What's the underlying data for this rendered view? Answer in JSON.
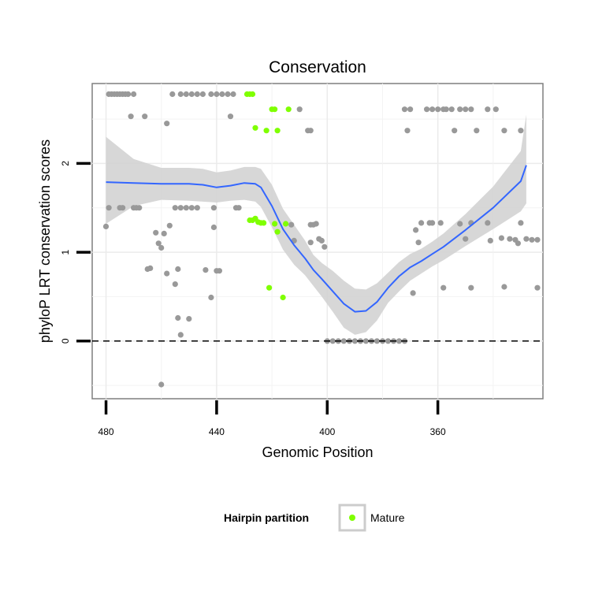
{
  "chart_data": {
    "type": "scatter",
    "title": "Conservation",
    "xlabel": "Genomic Position",
    "ylabel": "phyloP LRT conservation scores",
    "x_reversed": true,
    "xlim": [
      485,
      322
    ],
    "ylim": [
      -0.65,
      2.9
    ],
    "xticks": [
      480,
      440,
      400,
      360
    ],
    "yticks": [
      0,
      1,
      2
    ],
    "grid": true,
    "reference_line": {
      "y": 0,
      "style": "dashed"
    },
    "colors": {
      "other": "#999999",
      "mature": "#7fff00",
      "smooth_line": "#3366ff",
      "ribbon": "#d3d3d3"
    },
    "legend": {
      "title": "Hairpin partition",
      "position": "bottom",
      "entries": [
        {
          "label": "Mature",
          "color": "#7fff00"
        }
      ]
    },
    "series": [
      {
        "name": "",
        "color": "#999999",
        "points": [
          [
            479,
            2.78
          ],
          [
            478,
            2.78
          ],
          [
            477,
            2.78
          ],
          [
            476,
            2.78
          ],
          [
            475,
            2.78
          ],
          [
            474,
            2.78
          ],
          [
            473,
            2.78
          ],
          [
            472,
            2.78
          ],
          [
            470,
            2.78
          ],
          [
            456,
            2.78
          ],
          [
            453,
            2.78
          ],
          [
            451,
            2.78
          ],
          [
            449,
            2.78
          ],
          [
            447,
            2.78
          ],
          [
            445,
            2.78
          ],
          [
            442,
            2.78
          ],
          [
            440,
            2.78
          ],
          [
            438,
            2.78
          ],
          [
            436,
            2.78
          ],
          [
            434,
            2.78
          ],
          [
            471,
            2.53
          ],
          [
            466,
            2.53
          ],
          [
            458,
            2.45
          ],
          [
            435,
            2.53
          ],
          [
            479,
            1.5
          ],
          [
            475,
            1.5
          ],
          [
            474,
            1.5
          ],
          [
            470,
            1.5
          ],
          [
            469,
            1.5
          ],
          [
            468,
            1.5
          ],
          [
            455,
            1.5
          ],
          [
            453,
            1.5
          ],
          [
            451,
            1.5
          ],
          [
            449,
            1.5
          ],
          [
            447,
            1.5
          ],
          [
            441,
            1.5
          ],
          [
            433,
            1.5
          ],
          [
            432,
            1.5
          ],
          [
            480,
            1.29
          ],
          [
            462,
            1.22
          ],
          [
            461,
            1.1
          ],
          [
            460,
            1.05
          ],
          [
            459,
            1.21
          ],
          [
            457,
            1.3
          ],
          [
            441,
            1.28
          ],
          [
            465,
            0.81
          ],
          [
            464,
            0.82
          ],
          [
            458,
            0.76
          ],
          [
            454,
            0.81
          ],
          [
            444,
            0.8
          ],
          [
            440,
            0.79
          ],
          [
            439,
            0.79
          ],
          [
            455,
            0.64
          ],
          [
            442,
            0.49
          ],
          [
            454,
            0.26
          ],
          [
            450,
            0.25
          ],
          [
            453,
            0.07
          ],
          [
            460,
            -0.49
          ],
          [
            410,
            2.61
          ],
          [
            407,
            2.37
          ],
          [
            406,
            2.37
          ],
          [
            412,
            1.13
          ],
          [
            413,
            1.31
          ],
          [
            406,
            1.31
          ],
          [
            405,
            1.31
          ],
          [
            404,
            1.32
          ],
          [
            403,
            1.15
          ],
          [
            402,
            1.13
          ],
          [
            401,
            1.06
          ],
          [
            406,
            1.11
          ],
          [
            400,
            0
          ],
          [
            398,
            0
          ],
          [
            396,
            0
          ],
          [
            394,
            0
          ],
          [
            392,
            0
          ],
          [
            390,
            0
          ],
          [
            388,
            0
          ],
          [
            386,
            0
          ],
          [
            384,
            0
          ],
          [
            382,
            0
          ],
          [
            380,
            0
          ],
          [
            378,
            0
          ],
          [
            376,
            0
          ],
          [
            374,
            0
          ],
          [
            372,
            0
          ],
          [
            372,
            2.61
          ],
          [
            370,
            2.61
          ],
          [
            371,
            2.37
          ],
          [
            364,
            2.61
          ],
          [
            362,
            2.61
          ],
          [
            360,
            2.61
          ],
          [
            358,
            2.61
          ],
          [
            357,
            2.61
          ],
          [
            355,
            2.61
          ],
          [
            352,
            2.61
          ],
          [
            350,
            2.61
          ],
          [
            348,
            2.61
          ],
          [
            342,
            2.61
          ],
          [
            339,
            2.61
          ],
          [
            354,
            2.37
          ],
          [
            346,
            2.37
          ],
          [
            336,
            2.37
          ],
          [
            330,
            2.37
          ],
          [
            368,
            1.25
          ],
          [
            367,
            1.11
          ],
          [
            366,
            1.33
          ],
          [
            363,
            1.33
          ],
          [
            362,
            1.33
          ],
          [
            359,
            1.33
          ],
          [
            352,
            1.32
          ],
          [
            348,
            1.33
          ],
          [
            342,
            1.33
          ],
          [
            330,
            1.33
          ],
          [
            350,
            1.15
          ],
          [
            341,
            1.13
          ],
          [
            337,
            1.16
          ],
          [
            334,
            1.15
          ],
          [
            331,
            1.1
          ],
          [
            332,
            1.14
          ],
          [
            328,
            1.15
          ],
          [
            326,
            1.14
          ],
          [
            324,
            1.14
          ],
          [
            369,
            0.54
          ],
          [
            358,
            0.6
          ],
          [
            348,
            0.6
          ],
          [
            336,
            0.61
          ],
          [
            324,
            0.6
          ]
        ]
      },
      {
        "name": "Mature",
        "color": "#7fff00",
        "points": [
          [
            429,
            2.78
          ],
          [
            428,
            2.78
          ],
          [
            427,
            2.78
          ],
          [
            420,
            2.61
          ],
          [
            419,
            2.61
          ],
          [
            414,
            2.61
          ],
          [
            426,
            2.4
          ],
          [
            422,
            2.37
          ],
          [
            418,
            2.37
          ],
          [
            428,
            1.36
          ],
          [
            427,
            1.36
          ],
          [
            426,
            1.38
          ],
          [
            425,
            1.34
          ],
          [
            424,
            1.33
          ],
          [
            423,
            1.33
          ],
          [
            419,
            1.32
          ],
          [
            418,
            1.23
          ],
          [
            415,
            1.32
          ],
          [
            421,
            0.6
          ],
          [
            416,
            0.49
          ]
        ]
      }
    ],
    "smooth": {
      "x": [
        480,
        470,
        460,
        450,
        445,
        440,
        435,
        430,
        426,
        424,
        420,
        416,
        412,
        408,
        405,
        402,
        398,
        394,
        390,
        386,
        382,
        378,
        374,
        370,
        366,
        362,
        358,
        350,
        340,
        330,
        328
      ],
      "y": [
        1.79,
        1.78,
        1.77,
        1.77,
        1.76,
        1.73,
        1.75,
        1.78,
        1.77,
        1.73,
        1.52,
        1.26,
        1.08,
        0.93,
        0.8,
        0.7,
        0.56,
        0.42,
        0.33,
        0.34,
        0.44,
        0.6,
        0.73,
        0.83,
        0.9,
        0.98,
        1.06,
        1.25,
        1.5,
        1.8,
        1.98
      ],
      "lower": [
        1.32,
        1.52,
        1.59,
        1.58,
        1.57,
        1.56,
        1.58,
        1.59,
        1.57,
        1.51,
        1.28,
        1.03,
        0.86,
        0.74,
        0.62,
        0.5,
        0.33,
        0.15,
        0.07,
        0.1,
        0.23,
        0.43,
        0.56,
        0.68,
        0.76,
        0.84,
        0.91,
        1.07,
        1.26,
        1.46,
        1.55
      ],
      "upper": [
        2.3,
        2.05,
        1.95,
        1.95,
        1.94,
        1.9,
        1.92,
        1.96,
        1.96,
        1.94,
        1.76,
        1.49,
        1.31,
        1.13,
        0.97,
        0.88,
        0.79,
        0.68,
        0.59,
        0.58,
        0.65,
        0.77,
        0.89,
        0.98,
        1.04,
        1.12,
        1.21,
        1.43,
        1.74,
        2.14,
        2.55
      ]
    }
  }
}
